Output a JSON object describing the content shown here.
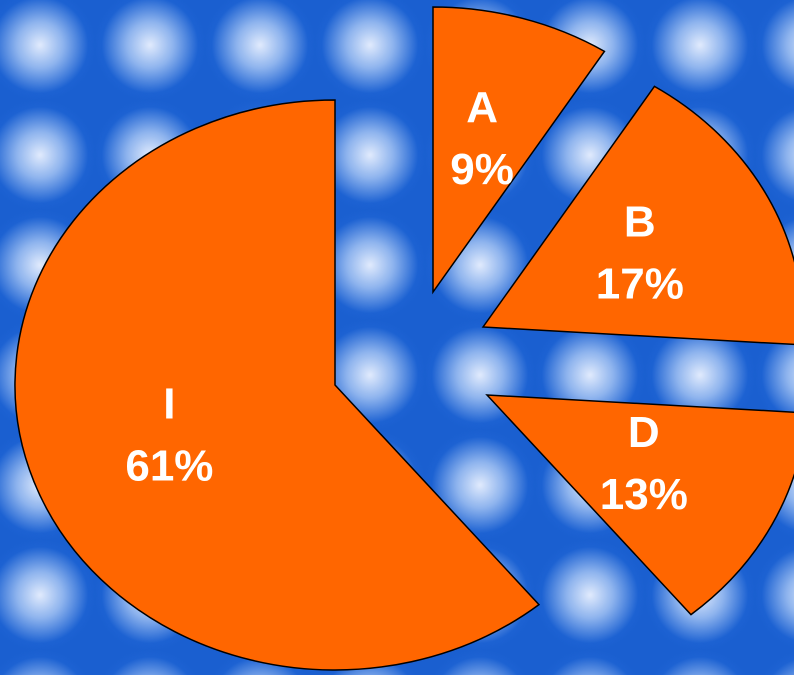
{
  "chart_data": {
    "type": "pie",
    "categories": [
      "A",
      "B",
      "D",
      "I"
    ],
    "values": [
      9,
      17,
      13,
      61
    ],
    "value_labels": [
      "9%",
      "17%",
      "13%",
      "61%"
    ],
    "color": "#ff6600"
  }
}
